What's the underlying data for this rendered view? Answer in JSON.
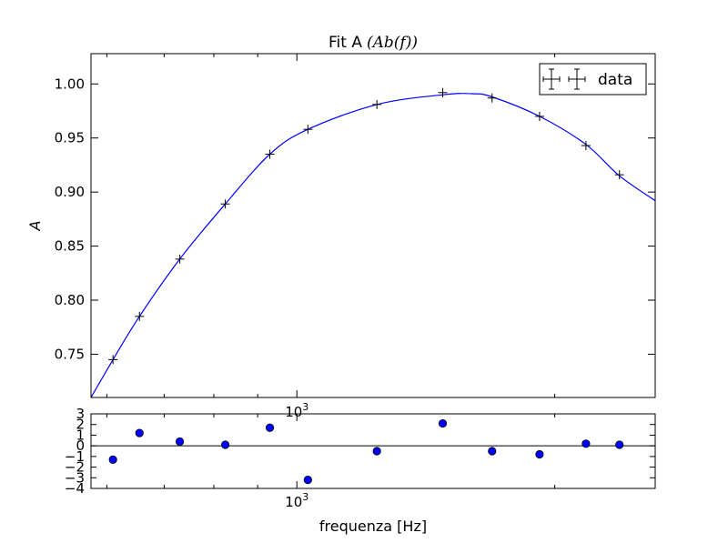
{
  "chart_data": [
    {
      "type": "scatter",
      "title": "Fit A",
      "title_math": "(Ab(f))",
      "ylabel": "A",
      "xlabel": "",
      "xscale": "log",
      "xlim": [
        575,
        2620
      ],
      "ylim": [
        0.71,
        1.028
      ],
      "x_tick_labels": [
        {
          "value": 1000,
          "label": "10",
          "exp": "3"
        }
      ],
      "y_ticks": [
        {
          "value": 0.75,
          "label": "0.75"
        },
        {
          "value": 0.8,
          "label": "0.80"
        },
        {
          "value": 0.85,
          "label": "0.85"
        },
        {
          "value": 0.9,
          "label": "0.90"
        },
        {
          "value": 0.95,
          "label": "0.95"
        },
        {
          "value": 1.0,
          "label": "1.00"
        }
      ],
      "legend": {
        "label": "data",
        "position": "top-right"
      },
      "series": [
        {
          "name": "data",
          "marker": "+",
          "x": [
            610,
            655,
            730,
            825,
            930,
            1030,
            1240,
            1480,
            1690,
            1920,
            2175,
            2380
          ],
          "y": [
            0.745,
            0.785,
            0.838,
            0.889,
            0.935,
            0.958,
            0.981,
            0.992,
            0.987,
            0.97,
            0.943,
            0.916
          ]
        },
        {
          "marker": "line",
          "x": [
            575,
            610,
            655,
            730,
            825,
            930,
            1030,
            1240,
            1480,
            1600,
            1690,
            1920,
            2175,
            2380,
            2620
          ],
          "y": [
            0.71,
            0.745,
            0.785,
            0.838,
            0.889,
            0.935,
            0.958,
            0.981,
            0.99,
            0.991,
            0.988,
            0.97,
            0.944,
            0.915,
            0.892
          ]
        }
      ],
      "colors": {
        "fit": "#0000ff",
        "points": "#000000"
      }
    },
    {
      "type": "scatter",
      "title": "",
      "xlabel": "frequenza [Hz]",
      "ylabel": "",
      "xscale": "log",
      "xlim": [
        575,
        2620
      ],
      "ylim": [
        -4,
        3
      ],
      "x_tick_labels": [
        {
          "value": 1000,
          "label": "10",
          "exp": "3"
        }
      ],
      "y_ticks": [
        {
          "value": 3,
          "label": "3"
        },
        {
          "value": 2,
          "label": "2"
        },
        {
          "value": 1,
          "label": "1"
        },
        {
          "value": 0,
          "label": "0"
        },
        {
          "value": -1,
          "label": "−1"
        },
        {
          "value": -2,
          "label": "−2"
        },
        {
          "value": -3,
          "label": "−3"
        },
        {
          "value": -4,
          "label": "−4"
        }
      ],
      "zero_line": true,
      "series": [
        {
          "marker": "circle",
          "x": [
            610,
            655,
            730,
            825,
            930,
            1030,
            1240,
            1480,
            1690,
            1920,
            2175,
            2380
          ],
          "y": [
            -1.3,
            1.2,
            0.4,
            0.1,
            1.7,
            -3.2,
            -0.5,
            2.1,
            -0.5,
            -0.8,
            0.2,
            0.1
          ]
        }
      ],
      "colors": {
        "points": "#0000ff"
      }
    }
  ]
}
